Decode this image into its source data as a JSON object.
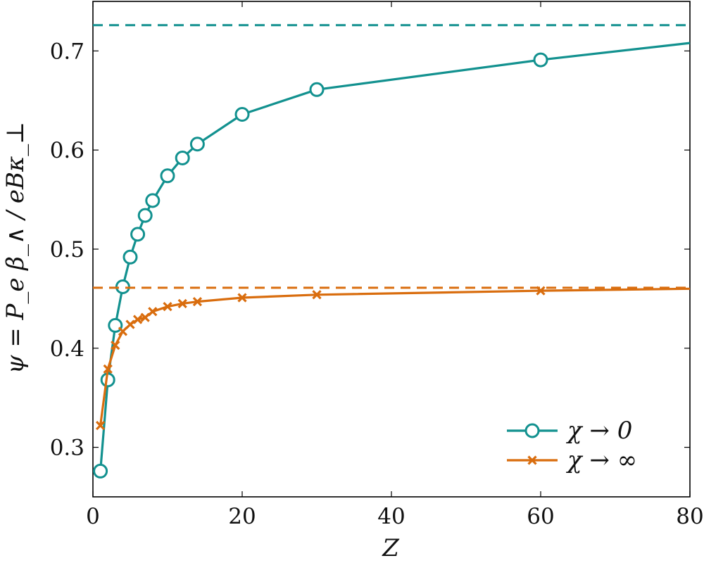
{
  "chart_data": {
    "type": "line",
    "xlabel": "Z",
    "ylabel": "ψ = P_e β_∧ / eBκ_⊥",
    "xlim": [
      0,
      80
    ],
    "ylim": [
      0.25,
      0.75
    ],
    "xticks": [
      "0",
      "20",
      "40",
      "60",
      "80"
    ],
    "yticks": [
      "0.3",
      "0.4",
      "0.5",
      "0.6",
      "0.7"
    ],
    "legend_position": "bottom-right",
    "grid": false,
    "series": [
      {
        "name": "χ → 0",
        "color": "#12918f",
        "marker": "circle",
        "x": [
          1,
          2,
          3,
          4,
          5,
          6,
          7,
          8,
          10,
          12,
          14,
          20,
          30,
          60,
          80
        ],
        "y": [
          0.276,
          0.368,
          0.423,
          0.462,
          0.492,
          0.515,
          0.534,
          0.549,
          0.574,
          0.592,
          0.606,
          0.636,
          0.661,
          0.691,
          0.708
        ],
        "asymptote": 0.726
      },
      {
        "name": "χ → ∞",
        "color": "#d96d0e",
        "marker": "x",
        "x": [
          1,
          2,
          3,
          4,
          5,
          6,
          7,
          8,
          10,
          12,
          14,
          20,
          30,
          60,
          80
        ],
        "y": [
          0.322,
          0.379,
          0.403,
          0.417,
          0.424,
          0.429,
          0.431,
          0.437,
          0.442,
          0.445,
          0.447,
          0.451,
          0.454,
          0.458,
          0.46
        ],
        "asymptote": 0.461
      }
    ]
  }
}
